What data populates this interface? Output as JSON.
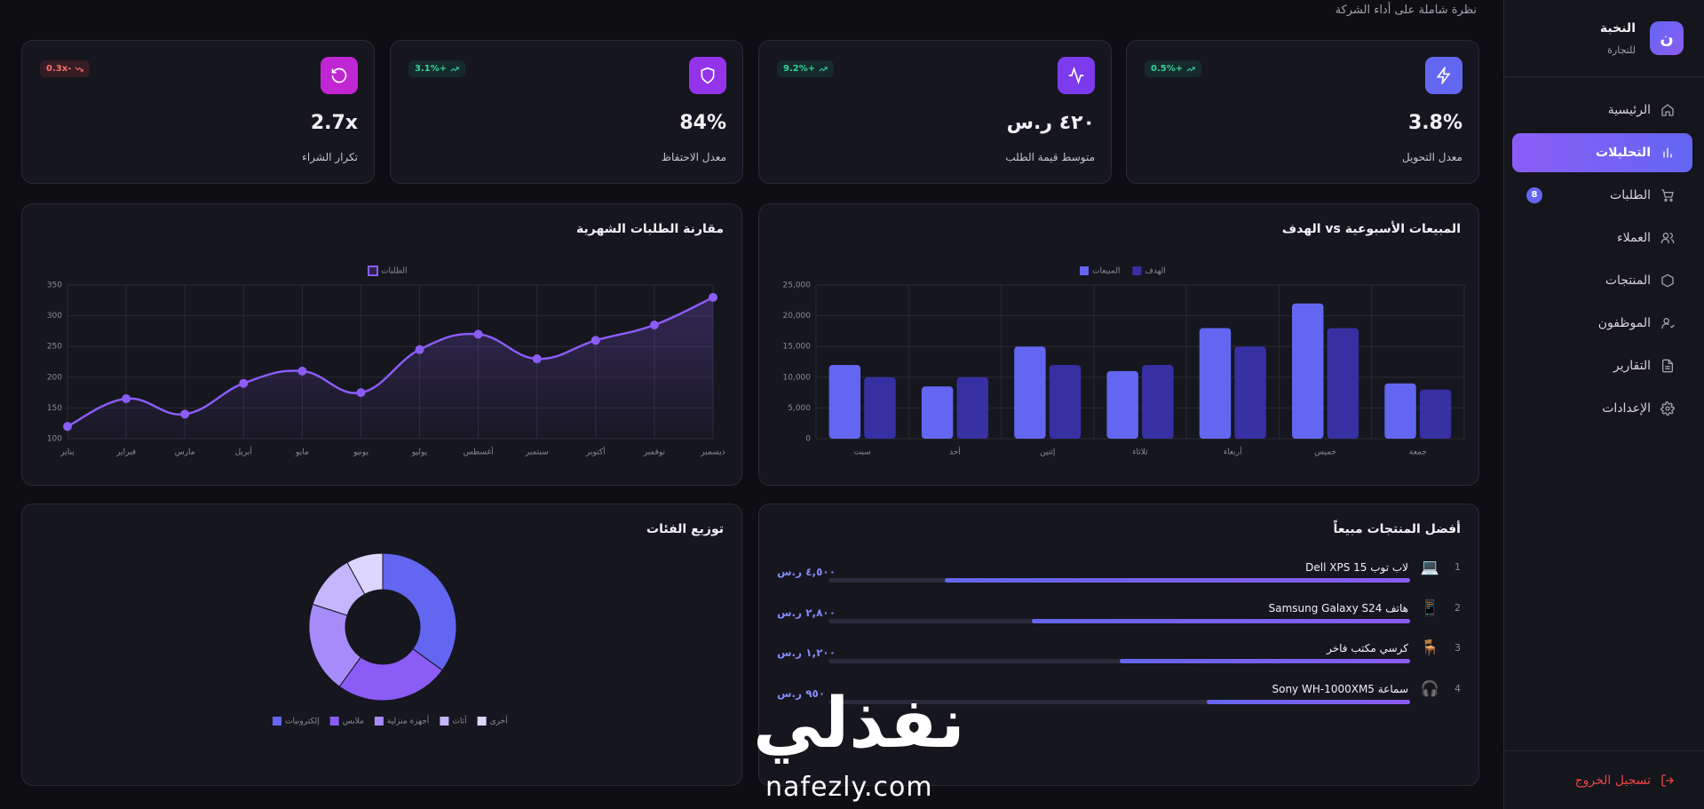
{
  "sidebar": {
    "logo": "ن",
    "brand": "النخبة",
    "tagline": "للتجارة",
    "active": 1,
    "nav": [
      {
        "label": "الرئيسية"
      },
      {
        "label": "التحليلات"
      },
      {
        "label": "الطلبات",
        "badge": 8
      },
      {
        "label": "العملاء"
      },
      {
        "label": "المنتجات"
      },
      {
        "label": "الموظفون"
      },
      {
        "label": "التقارير"
      },
      {
        "label": "الإعدادات"
      }
    ],
    "logout": "تسجيل الخروج"
  },
  "header": {
    "subtitle": "نظرة شاملة على أداء الشركة"
  },
  "kpis": [
    {
      "label": "معدل التحويل",
      "value": "3.8%",
      "change": "+0.5%"
    },
    {
      "label": "متوسط قيمة الطلب",
      "value": "٤٢٠ ر.س",
      "change": "+9.2%"
    },
    {
      "label": "معدل الاحتفاظ",
      "value": "84%",
      "change": "+3.1%"
    },
    {
      "label": "تكرار الشراء",
      "value": "2.7x",
      "change": "-0.3x"
    }
  ],
  "chart_data": [
    {
      "type": "bar",
      "title": "المبيعات الأسبوعية vs الهدف",
      "categories": [
        "سبت",
        "أحد",
        "إثنين",
        "ثلاثاء",
        "أربعاء",
        "خميس",
        "جمعة"
      ],
      "series": [
        {
          "name": "المبيعات",
          "color": "#6366f1",
          "values": [
            12000,
            8500,
            15000,
            11000,
            18000,
            22000,
            9000
          ]
        },
        {
          "name": "الهدف",
          "color": "#3730a3",
          "values": [
            10000,
            10000,
            12000,
            12000,
            15000,
            18000,
            8000
          ]
        }
      ],
      "ylim": [
        0,
        25000
      ],
      "yticks": [
        0,
        {
          "value": 5000,
          "label": "5,000"
        },
        {
          "value": 10000,
          "label": "10,000"
        },
        {
          "value": 15000,
          "label": "15,000"
        },
        {
          "value": 20000,
          "label": "20,000"
        },
        {
          "value": 25000,
          "label": "25,000"
        }
      ],
      "grid": true
    },
    {
      "type": "line",
      "title": "مقارنة الطلبات الشهرية",
      "categories": [
        "يناير",
        "فبراير",
        "مارس",
        "أبريل",
        "مايو",
        "يونيو",
        "يوليو",
        "أغسطس",
        "سبتمبر",
        "أكتوبر",
        "نوفمبر",
        "ديسمبر"
      ],
      "series": [
        {
          "name": "الطلبات",
          "color": "#8b5cf6",
          "values": [
            120,
            165,
            140,
            190,
            210,
            175,
            245,
            270,
            230,
            260,
            285,
            330
          ]
        }
      ],
      "ylim": [
        100,
        350
      ],
      "yticks": [
        100,
        150,
        200,
        250,
        300,
        350
      ],
      "grid": true
    },
    {
      "type": "doughnut",
      "title": "توزيع الفئات",
      "categories": [
        "إلكترونيات",
        "ملابس",
        "أجهزة منزلية",
        "أثاث",
        "أخرى"
      ],
      "values": [
        35,
        25,
        20,
        12,
        8
      ],
      "colors": [
        "#6366f1",
        "#8b5cf6",
        "#a78bfa",
        "#c4b5fd",
        "#ddd6fe"
      ]
    }
  ],
  "top_products": {
    "title": "أفضل المنتجات مبيعاً",
    "items": [
      {
        "rank": 1,
        "icon": "💻",
        "name": "لاب توب Dell XPS 15",
        "price": "٤,٥٠٠ ر.س",
        "share": 80
      },
      {
        "rank": 2,
        "icon": "📱",
        "name": "هاتف Samsung Galaxy S24",
        "price": "٢,٨٠٠ ر.س",
        "share": 65
      },
      {
        "rank": 3,
        "icon": "🪑",
        "name": "كرسي مكتب فاخر",
        "price": "١,٢٠٠ ر.س",
        "share": 50
      },
      {
        "rank": 4,
        "icon": "🎧",
        "name": "سماعة Sony WH-1000XM5",
        "price": "٩٥٠ ر.س",
        "share": 35
      }
    ]
  },
  "watermark": {
    "brand": "نفذلي",
    "url": "nafezly.com"
  }
}
